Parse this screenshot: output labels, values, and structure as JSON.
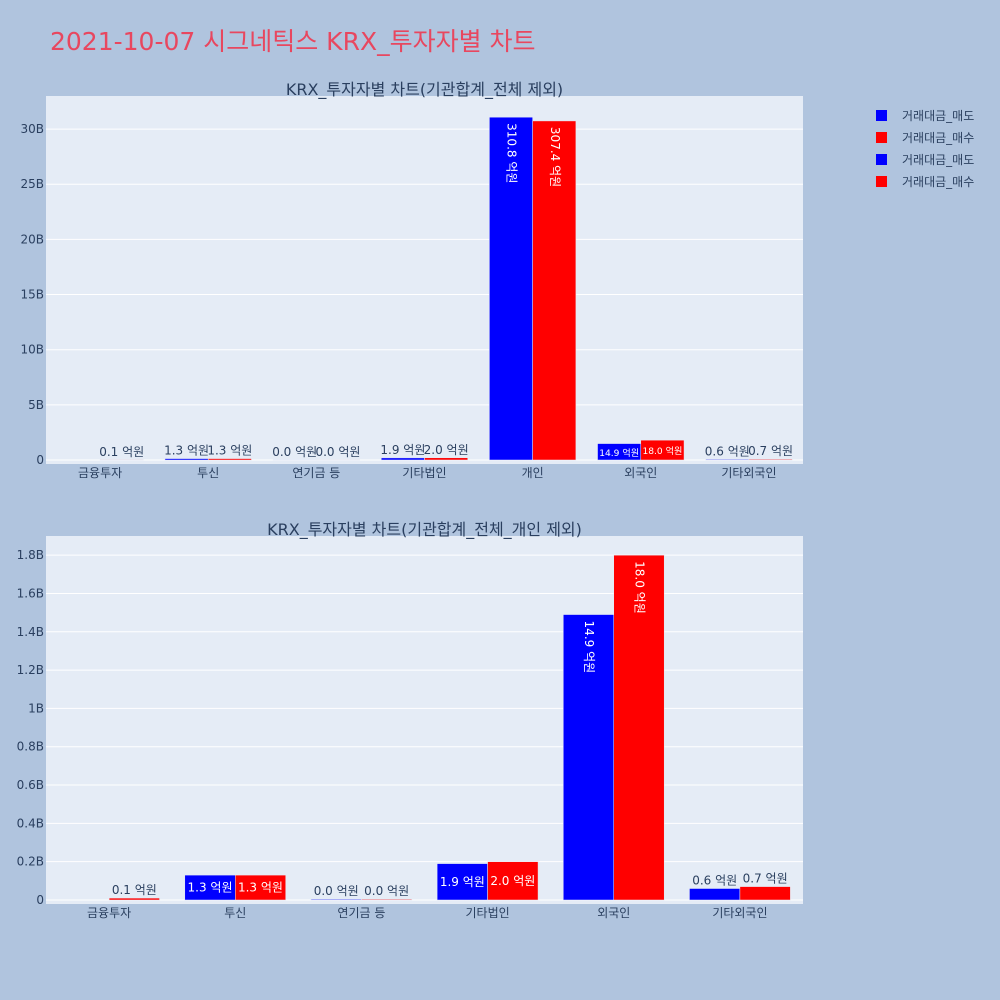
{
  "page": {
    "title": "2021-10-07 시그네틱스 KRX_투자자별 차트",
    "title_color": "#e8475f",
    "background": "#b0c4de",
    "plot_background": "#e5ecf6"
  },
  "legend": {
    "placement": "top-right",
    "items": [
      {
        "label": "거래대금_매도",
        "color": "#0000ff"
      },
      {
        "label": "거래대금_매수",
        "color": "#ff0000"
      },
      {
        "label": "거래대금_매도",
        "color": "#0000ff"
      },
      {
        "label": "거래대금_매수",
        "color": "#ff0000"
      }
    ]
  },
  "chart_data": [
    {
      "type": "bar",
      "title": "KRX_투자자별 차트(기관합계_전체 제외)",
      "categories": [
        "금융투자",
        "투신",
        "연기금 등",
        "기타법인",
        "개인",
        "외국인",
        "기타외국인"
      ],
      "ylim": [
        0,
        33
      ],
      "yticks": [
        0,
        5,
        10,
        15,
        20,
        25,
        30
      ],
      "ytick_labels": [
        "0",
        "5B",
        "10B",
        "15B",
        "20B",
        "25B",
        "30B"
      ],
      "grid": true,
      "series": [
        {
          "name": "거래대금_매도",
          "color": "#0000ff",
          "values": [
            0,
            0.13,
            0.004,
            0.19,
            31.08,
            1.49,
            0.06
          ],
          "labels": [
            "",
            "1.3 억원",
            "0.0 억원",
            "1.9 억원",
            "310.8 억원",
            "14.9 억원",
            "0.6 억원"
          ]
        },
        {
          "name": "거래대금_매수",
          "color": "#ff0000",
          "values": [
            0.01,
            0.13,
            0.004,
            0.2,
            30.74,
            1.8,
            0.07
          ],
          "labels": [
            "0.1 억원",
            "1.3 억원",
            "0.0 억원",
            "2.0 억원",
            "307.4 억원",
            "18.0 억원",
            "0.7 억원"
          ]
        }
      ]
    },
    {
      "type": "bar",
      "title": "KRX_투자자별 차트(기관합계_전체_개인 제외)",
      "categories": [
        "금융투자",
        "투신",
        "연기금 등",
        "기타법인",
        "외국인",
        "기타외국인"
      ],
      "ylim": [
        0,
        1.9
      ],
      "yticks": [
        0,
        0.2,
        0.4,
        0.6,
        0.8,
        1.0,
        1.2,
        1.4,
        1.6,
        1.8
      ],
      "ytick_labels": [
        "0",
        "0.2B",
        "0.4B",
        "0.6B",
        "0.8B",
        "1B",
        "1.2B",
        "1.4B",
        "1.6B",
        "1.8B"
      ],
      "grid": true,
      "series": [
        {
          "name": "거래대금_매도",
          "color": "#0000ff",
          "values": [
            0,
            0.13,
            0.004,
            0.19,
            1.49,
            0.06
          ],
          "labels": [
            "",
            "1.3 억원",
            "0.0 억원",
            "1.9 억원",
            "14.9 억원",
            "0.6 억원"
          ]
        },
        {
          "name": "거래대금_매수",
          "color": "#ff0000",
          "values": [
            0.01,
            0.13,
            0.004,
            0.2,
            1.8,
            0.07
          ],
          "labels": [
            "0.1 억원",
            "1.3 억원",
            "0.0 억원",
            "2.0 억원",
            "18.0 억원",
            "0.7 억원"
          ]
        }
      ]
    }
  ]
}
